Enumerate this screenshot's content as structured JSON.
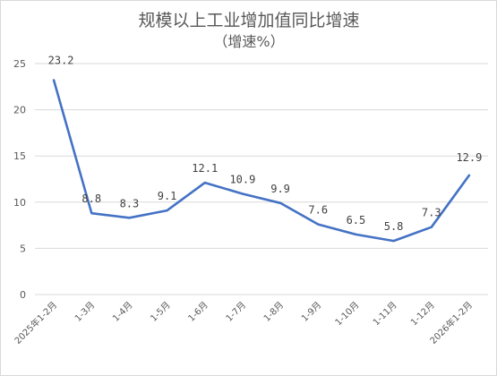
{
  "chart_data": {
    "type": "line",
    "title": "规模以上工业增加值同比增速",
    "subtitle": "（增速%）",
    "xlabel": "",
    "ylabel": "",
    "categories": [
      "2025年1-2月",
      "1-3月",
      "1-4月",
      "1-5月",
      "1-6月",
      "1-7月",
      "1-8月",
      "1-9月",
      "1-10月",
      "1-11月",
      "1-12月",
      "2026年1-2月"
    ],
    "series": [
      {
        "values": [
          23.2,
          8.8,
          8.3,
          9.1,
          12.1,
          10.9,
          9.9,
          7.6,
          6.5,
          5.8,
          7.3,
          12.9
        ]
      }
    ],
    "data_labels": [
      "23.2",
      "8.8",
      "8.3",
      "9.1",
      "12.1",
      "10.9",
      "9.9",
      "7.6",
      "6.5",
      "5.8",
      "7.3",
      "12.9"
    ],
    "ylim": [
      0,
      25
    ],
    "yticks": [
      "0",
      "5",
      "10",
      "15",
      "20",
      "25"
    ],
    "grid": true,
    "legend": "none",
    "line_color": "#4472c4"
  }
}
